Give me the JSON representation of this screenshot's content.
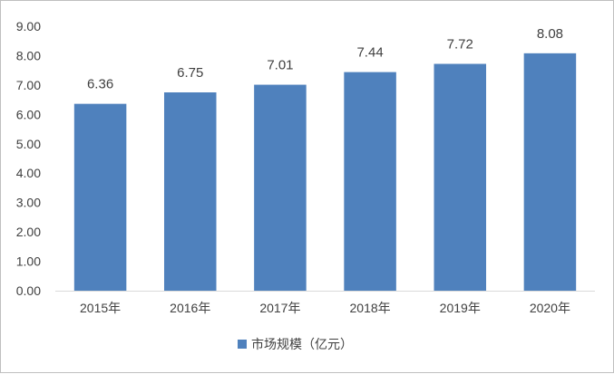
{
  "chart_data": {
    "type": "bar",
    "categories": [
      "2015年",
      "2016年",
      "2017年",
      "2018年",
      "2019年",
      "2020年"
    ],
    "series": [
      {
        "name": "市场规模（亿元）",
        "values": [
          6.36,
          6.75,
          7.01,
          7.44,
          7.72,
          8.08
        ],
        "color": "#4f81bd"
      }
    ],
    "data_labels": [
      "6.36",
      "6.75",
      "7.01",
      "7.44",
      "7.72",
      "8.08"
    ],
    "y_ticks": [
      "0.00",
      "1.00",
      "2.00",
      "3.00",
      "4.00",
      "5.00",
      "6.00",
      "7.00",
      "8.00",
      "9.00"
    ],
    "ylim": [
      0,
      9
    ],
    "legend_position": "bottom",
    "grid": false
  }
}
